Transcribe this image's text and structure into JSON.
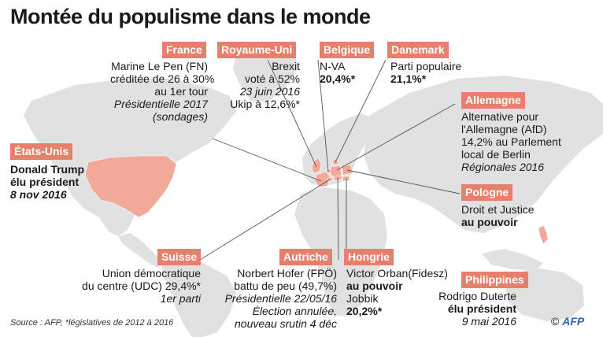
{
  "title": "Montée du populisme dans le monde",
  "source": "Source : AFP, *législatives de 2012 à 2016",
  "credit": {
    "symbol": "©",
    "brand": "AFP"
  },
  "colors": {
    "accent": "#e6806c",
    "land": "#e1e1e1",
    "highlight": "#f1a99a",
    "line": "#555555"
  },
  "countries": {
    "france": {
      "name": "France",
      "lines": [
        "Marine Le Pen (FN)",
        "créditée de 26 à 30%",
        "au 1er tour",
        "Présidentielle 2017",
        "(sondages)"
      ]
    },
    "royaume_uni": {
      "name": "Royaume-Uni",
      "lines": [
        "Brexit",
        "voté à 52%",
        "23 juin 2016",
        "Ukip à 12,6%*"
      ]
    },
    "belgique": {
      "name": "Belgique",
      "lines": [
        "N-VA",
        "20,4%*"
      ]
    },
    "danemark": {
      "name": "Danemark",
      "lines": [
        "Parti populaire",
        "21,1%*"
      ]
    },
    "allemagne": {
      "name": "Allemagne",
      "lines": [
        "Alternative pour",
        "l'Allemagne (AfD)",
        "14,2% au Parlement",
        "local de Berlin",
        "Régionales 2016"
      ]
    },
    "etats_unis": {
      "name": "États-Unis",
      "lines": [
        "Donald Trump",
        "élu président",
        "8 nov 2016"
      ]
    },
    "pologne": {
      "name": "Pologne",
      "lines": [
        "Droit et Justice",
        "au pouvoir"
      ]
    },
    "suisse": {
      "name": "Suisse",
      "lines": [
        "Union démocratique",
        "du centre (UDC) 29,4%*",
        "1er parti"
      ]
    },
    "autriche": {
      "name": "Autriche",
      "lines": [
        "Norbert Hofer (FPÖ)",
        "battu de peu (49,7%)",
        "Présidentielle 22/05/16",
        "Élection annulée,",
        "nouveau srutin 4 déc"
      ]
    },
    "hongrie": {
      "name": "Hongrie",
      "lines": [
        "Victor Orban(Fidesz)",
        "au pouvoir",
        "Jobbik",
        "20,2%*"
      ]
    },
    "philippines": {
      "name": "Philippines",
      "lines": [
        "Rodrigo Duterte",
        "élu président",
        "9 mai 2016"
      ]
    }
  }
}
